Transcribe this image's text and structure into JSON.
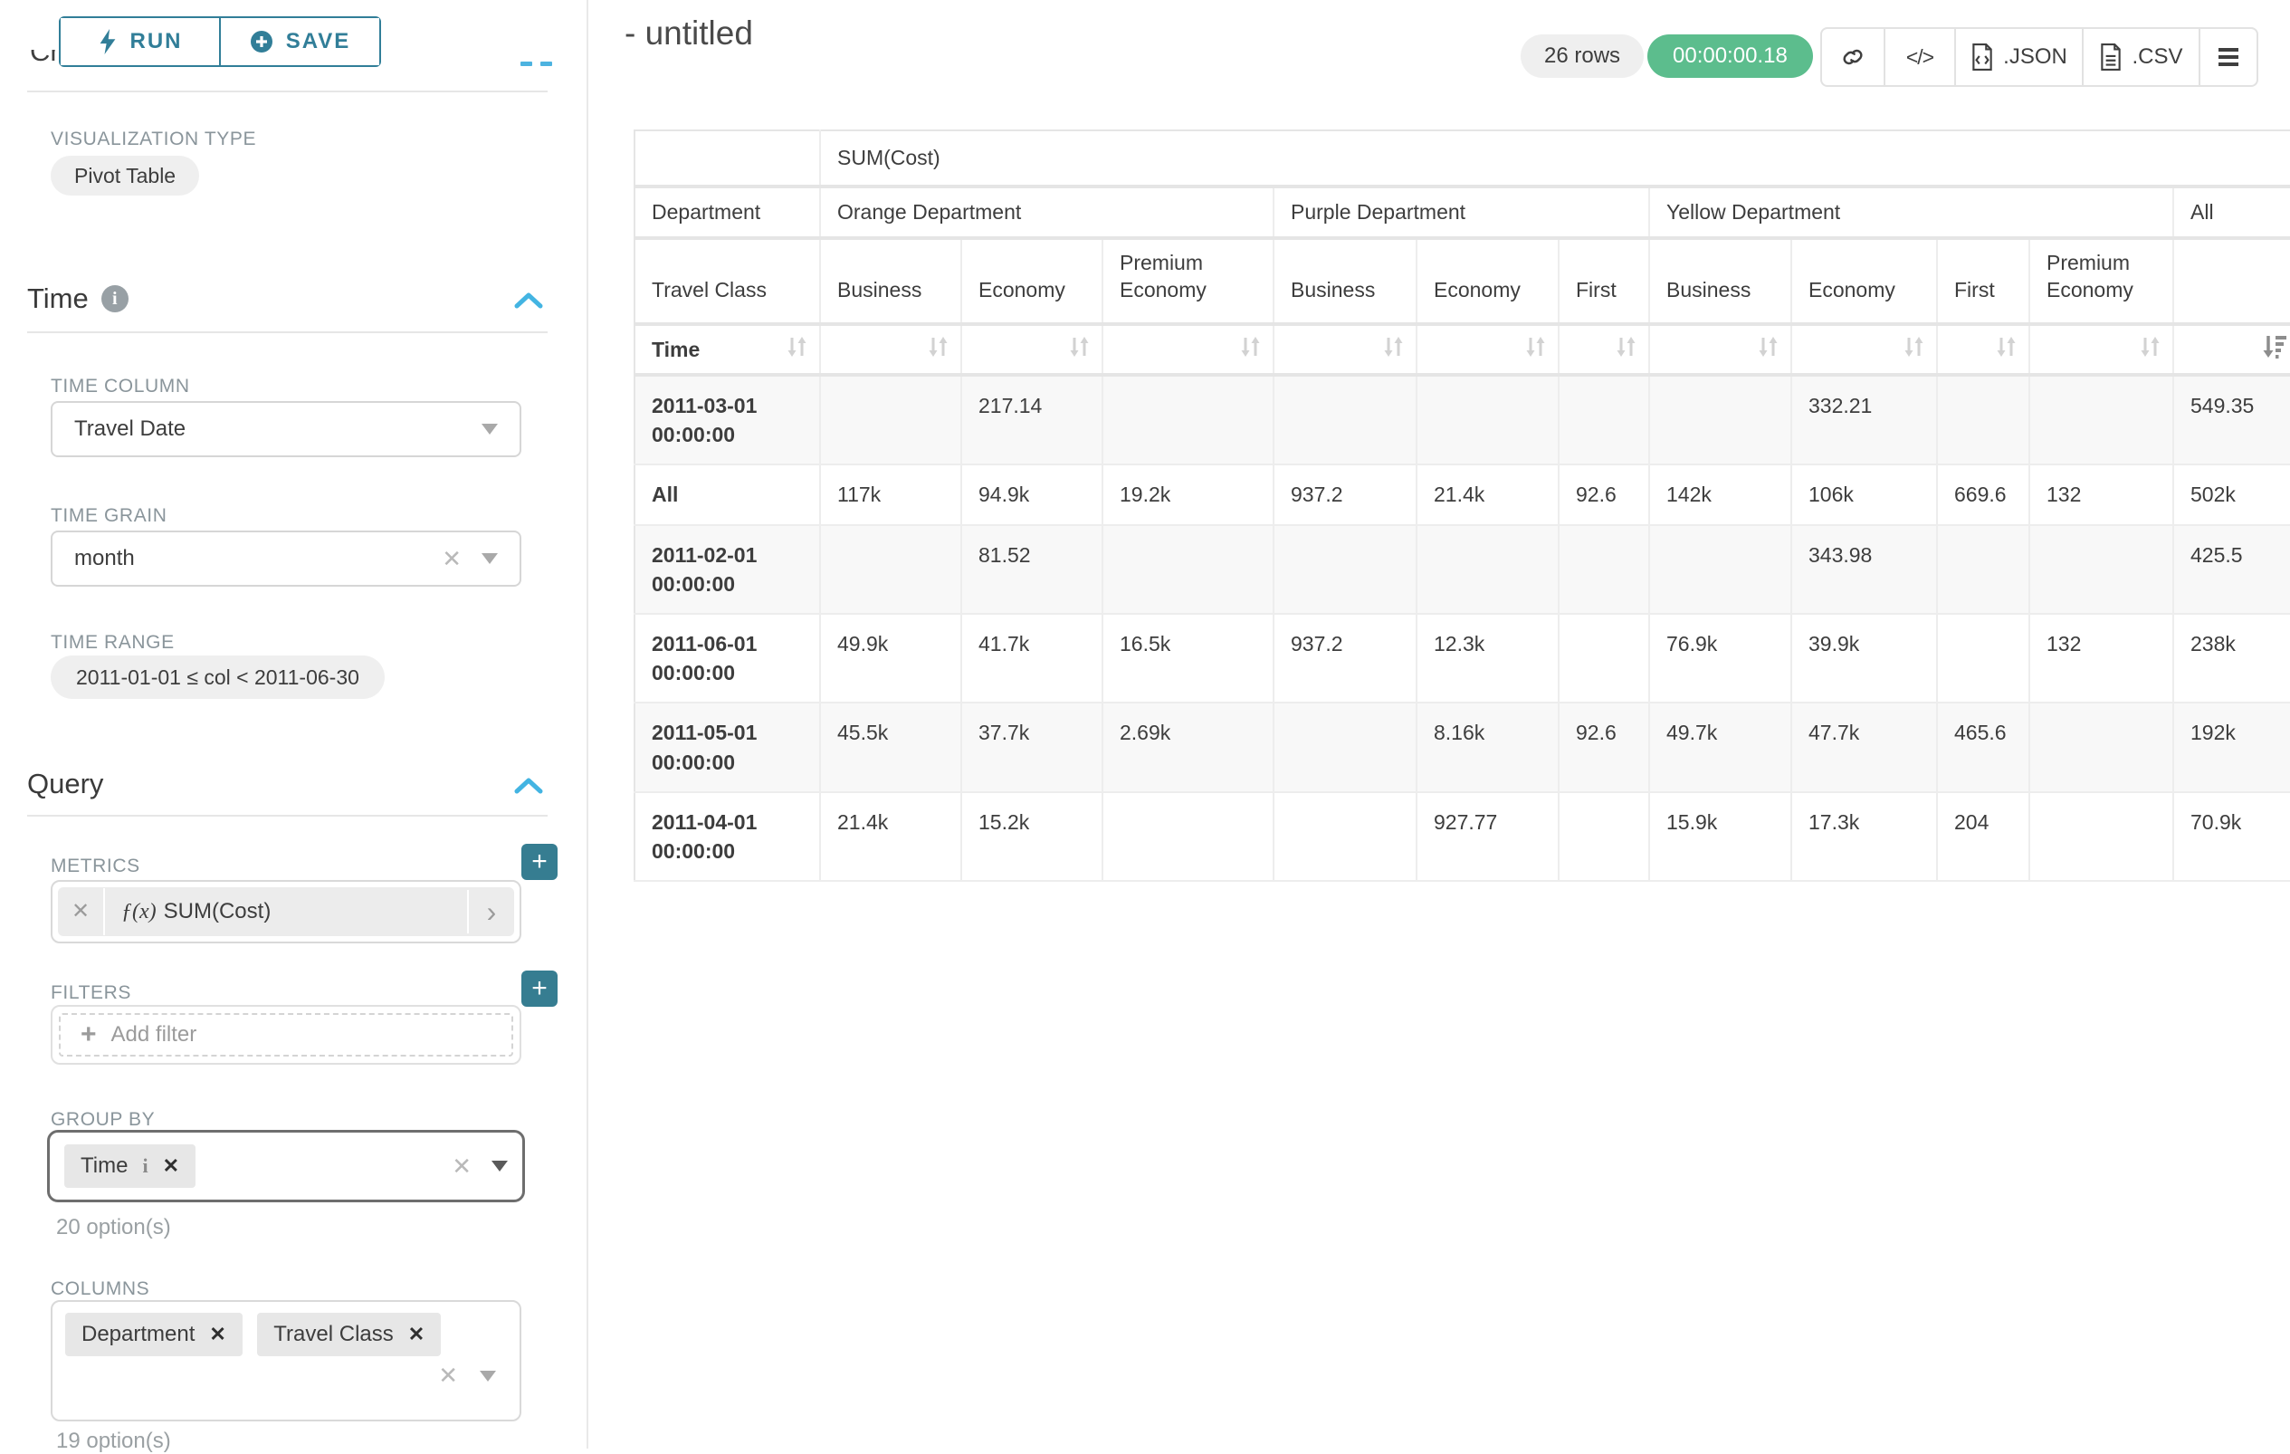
{
  "colors": {
    "accent_teal": "#317e98",
    "button_teal": "#367d91",
    "chevron_blue": "#43b4e2",
    "timer_green": "#5cbd8d"
  },
  "sidebar": {
    "run_label": "RUN",
    "save_label": "SAVE",
    "chart_type_title": "Chart Type",
    "viz_type_label": "VISUALIZATION TYPE",
    "viz_type_value": "Pivot Table",
    "time": {
      "title": "Time",
      "time_column_label": "TIME COLUMN",
      "time_column_value": "Travel Date",
      "time_grain_label": "TIME GRAIN",
      "time_grain_value": "month",
      "time_range_label": "TIME RANGE",
      "time_range_value": "2011-01-01 ≤ col < 2011-06-30"
    },
    "query": {
      "title": "Query",
      "metrics_label": "METRICS",
      "metric_fx": "ƒ(x)",
      "metric_value": "SUM(Cost)",
      "filters_label": "FILTERS",
      "add_filter_label": "Add filter",
      "group_by_label": "GROUP BY",
      "group_by_tags": [
        "Time"
      ],
      "group_by_hint": "20 option(s)",
      "columns_label": "COLUMNS",
      "columns_tags": [
        "Department",
        "Travel Class"
      ],
      "columns_hint": "19 option(s)"
    }
  },
  "header": {
    "title": "- untitled",
    "rows_badge": "26 rows",
    "timer": "00:00:00.18",
    "export_json_label": ".JSON",
    "export_csv_label": ".CSV"
  },
  "pivot_table": {
    "metric_header": "SUM(Cost)",
    "department_label": "Department",
    "travel_class_label": "Travel Class",
    "time_label": "Time",
    "groups": [
      {
        "name": "Orange Department",
        "cols": [
          "Business",
          "Economy",
          "Premium Economy"
        ]
      },
      {
        "name": "Purple Department",
        "cols": [
          "Business",
          "Economy",
          "First"
        ]
      },
      {
        "name": "Yellow Department",
        "cols": [
          "Business",
          "Economy",
          "First",
          "Premium Economy"
        ]
      },
      {
        "name": "All",
        "cols": [
          ""
        ]
      }
    ],
    "rows": [
      {
        "label": "2011-03-01 00:00:00",
        "values": [
          "",
          "217.14",
          "",
          "",
          "",
          "",
          "",
          "332.21",
          "",
          "",
          "549.35"
        ]
      },
      {
        "label": "All",
        "values": [
          "117k",
          "94.9k",
          "19.2k",
          "937.2",
          "21.4k",
          "92.6",
          "142k",
          "106k",
          "669.6",
          "132",
          "502k"
        ]
      },
      {
        "label": "2011-02-01 00:00:00",
        "values": [
          "",
          "81.52",
          "",
          "",
          "",
          "",
          "",
          "343.98",
          "",
          "",
          "425.5"
        ]
      },
      {
        "label": "2011-06-01 00:00:00",
        "values": [
          "49.9k",
          "41.7k",
          "16.5k",
          "937.2",
          "12.3k",
          "",
          "76.9k",
          "39.9k",
          "",
          "132",
          "238k"
        ]
      },
      {
        "label": "2011-05-01 00:00:00",
        "values": [
          "45.5k",
          "37.7k",
          "2.69k",
          "",
          "8.16k",
          "92.6",
          "49.7k",
          "47.7k",
          "465.6",
          "",
          "192k"
        ]
      },
      {
        "label": "2011-04-01 00:00:00",
        "values": [
          "21.4k",
          "15.2k",
          "",
          "",
          "927.77",
          "",
          "15.9k",
          "17.3k",
          "204",
          "",
          "70.9k"
        ]
      }
    ]
  }
}
